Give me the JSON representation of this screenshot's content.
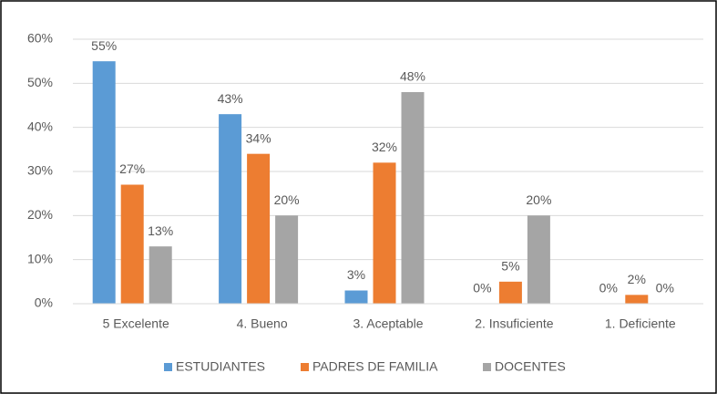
{
  "chart_data": {
    "type": "bar",
    "categories": [
      "5 Excelente",
      "4. Bueno",
      "3. Aceptable",
      "2. Insuficiente",
      "1. Deficiente"
    ],
    "series": [
      {
        "name": "ESTUDIANTES",
        "color": "#5b9bd5",
        "values": [
          55,
          43,
          3,
          0,
          0
        ],
        "value_labels": [
          "55%",
          "43%",
          "3%",
          "0%",
          "0%"
        ]
      },
      {
        "name": "PADRES DE FAMILIA",
        "color": "#ed7d31",
        "values": [
          27,
          34,
          32,
          5,
          2
        ],
        "value_labels": [
          "27%",
          "34%",
          "32%",
          "5%",
          "2%"
        ]
      },
      {
        "name": "DOCENTES",
        "color": "#a5a5a5",
        "values": [
          13,
          20,
          48,
          20,
          0
        ],
        "value_labels": [
          "13%",
          "20%",
          "48%",
          "20%",
          "0%"
        ]
      }
    ],
    "ylim": [
      0,
      60
    ],
    "yticks": [
      {
        "value": 0,
        "label": "0%"
      },
      {
        "value": 10,
        "label": "10%"
      },
      {
        "value": 20,
        "label": "20%"
      },
      {
        "value": 30,
        "label": "30%"
      },
      {
        "value": 40,
        "label": "40%"
      },
      {
        "value": 50,
        "label": "50%"
      },
      {
        "value": 60,
        "label": "60%"
      }
    ],
    "grid": true,
    "legend": "bottom"
  }
}
